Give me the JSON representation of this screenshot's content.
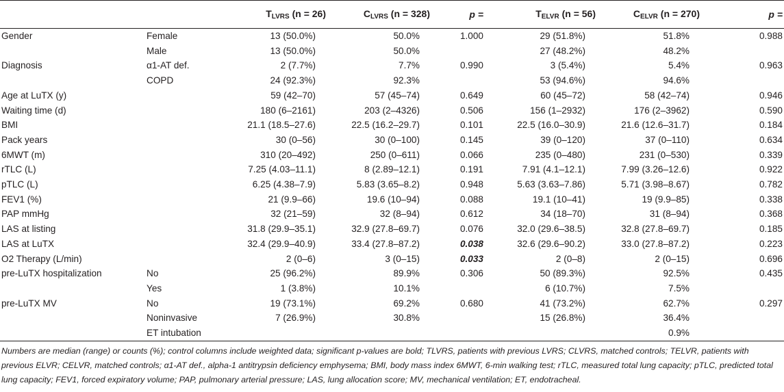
{
  "header": {
    "col1": "",
    "col2": "",
    "t_lvrs": "T",
    "t_lvrs_sub": "LVRS",
    "t_lvrs_n": " (n = 26)",
    "c_lvrs": "C",
    "c_lvrs_sub": "LVRS",
    "c_lvrs_n": " (n = 328)",
    "p1": "p =",
    "t_elvr": "T",
    "t_elvr_sub": "ELVR",
    "t_elvr_n": " (n = 56)",
    "c_elvr": "C",
    "c_elvr_sub": "ELVR",
    "c_elvr_n": " (n = 270)",
    "p2": "p ="
  },
  "rows": [
    [
      "Gender",
      "Female",
      "13 (50.0%)",
      "50.0%",
      "1.000",
      "29 (51.8%)",
      "51.8%",
      "0.988"
    ],
    [
      "",
      "Male",
      "13 (50.0%)",
      "50.0%",
      "",
      "27 (48.2%)",
      "48.2%",
      ""
    ],
    [
      "Diagnosis",
      "α1-AT def.",
      "2 (7.7%)",
      "7.7%",
      "0.990",
      "3 (5.4%)",
      "5.4%",
      "0.963"
    ],
    [
      "",
      "COPD",
      "24 (92.3%)",
      "92.3%",
      "",
      "53 (94.6%)",
      "94.6%",
      ""
    ],
    [
      "Age at LuTX (y)",
      "",
      "59 (42–70)",
      "57 (45–74)",
      "0.649",
      "60 (45–72)",
      "58 (42–74)",
      "0.946"
    ],
    [
      "Waiting time (d)",
      "",
      "180 (6–2161)",
      "203 (2–4326)",
      "0.506",
      "156 (1–2932)",
      "176 (2–3962)",
      "0.590"
    ],
    [
      "BMI",
      "",
      "21.1 (18.5–27.6)",
      "22.5 (16.2–29.7)",
      "0.101",
      "22.5 (16.0–30.9)",
      "21.6 (12.6–31.7)",
      "0.184"
    ],
    [
      "Pack years",
      "",
      "30 (0–56)",
      "30 (0–100)",
      "0.145",
      "39 (0–120)",
      "37 (0–110)",
      "0.634"
    ],
    [
      "6MWT (m)",
      "",
      "310 (20–492)",
      "250 (0–611)",
      "0.066",
      "235 (0–480)",
      "231 (0–530)",
      "0.339"
    ],
    [
      "rTLC (L)",
      "",
      "7.25 (4.03–11.1)",
      "8 (2.89–12.1)",
      "0.191",
      "7.91 (4.1–12.1)",
      "7.99 (3.26–12.6)",
      "0.922"
    ],
    [
      "pTLC (L)",
      "",
      "6.25 (4.38–7.9)",
      "5.83 (3.65–8.2)",
      "0.948",
      "5.63 (3.63–7.86)",
      "5.71 (3.98–8.67)",
      "0.782"
    ],
    [
      "FEV1 (%)",
      "",
      "21 (9.9–66)",
      "19.6 (10–94)",
      "0.088",
      "19.1 (10–41)",
      "19 (9.9–85)",
      "0.338"
    ],
    [
      "PAP mmHg",
      "",
      "32 (21–59)",
      "32 (8–94)",
      "0.612",
      "34 (18–70)",
      "31 (8–94)",
      "0.368"
    ],
    [
      "LAS at listing",
      "",
      "31.8 (29.9–35.1)",
      "32.9 (27.8–69.7)",
      "0.076",
      "32.0 (29.6–38.5)",
      "32.8 (27.8–69.7)",
      "0.185"
    ],
    [
      "LAS at LuTX",
      "",
      "32.4 (29.9–40.9)",
      "33.4 (27.8–87.2)",
      "0.038",
      "32.6 (29.6–90.2)",
      "33.0 (27.8–87.2)",
      "0.223"
    ],
    [
      "O2 Therapy (L/min)",
      "",
      "2 (0–6)",
      "3 (0–15)",
      "0.033",
      "2 (0–8)",
      "2 (0–15)",
      "0.696"
    ],
    [
      "pre-LuTX hospitalization",
      "No",
      "25 (96.2%)",
      "89.9%",
      "0.306",
      "50 (89.3%)",
      "92.5%",
      "0.435"
    ],
    [
      "",
      "Yes",
      "1 (3.8%)",
      "10.1%",
      "",
      "6 (10.7%)",
      "7.5%",
      ""
    ],
    [
      "pre-LuTX MV",
      "No",
      "19 (73.1%)",
      "69.2%",
      "0.680",
      "41 (73.2%)",
      "62.7%",
      "0.297"
    ],
    [
      "",
      "Noninvasive",
      "7 (26.9%)",
      "30.8%",
      "",
      "15 (26.8%)",
      "36.4%",
      ""
    ],
    [
      "",
      "ET intubation",
      "",
      "",
      "",
      "",
      "0.9%",
      ""
    ]
  ],
  "bold_p_rows": [
    14,
    15
  ],
  "footnote": "Numbers are median (range) or counts (%); control columns include weighted data; significant p-values are bold; TLVRS, patients with previous LVRS; CLVRS, matched controls; TELVR, patients with previous ELVR; CELVR, matched controls; α1-AT def., alpha-1 antitrypsin deficiency emphysema; BMI, body mass index 6MWT, 6-min walking test; rTLC, measured total lung capacity; pTLC, predicted total lung capacity; FEV1, forced expiratory volume; PAP, pulmonary arterial pressure; LAS, lung allocation score; MV, mechanical ventilation; ET, endotracheal."
}
